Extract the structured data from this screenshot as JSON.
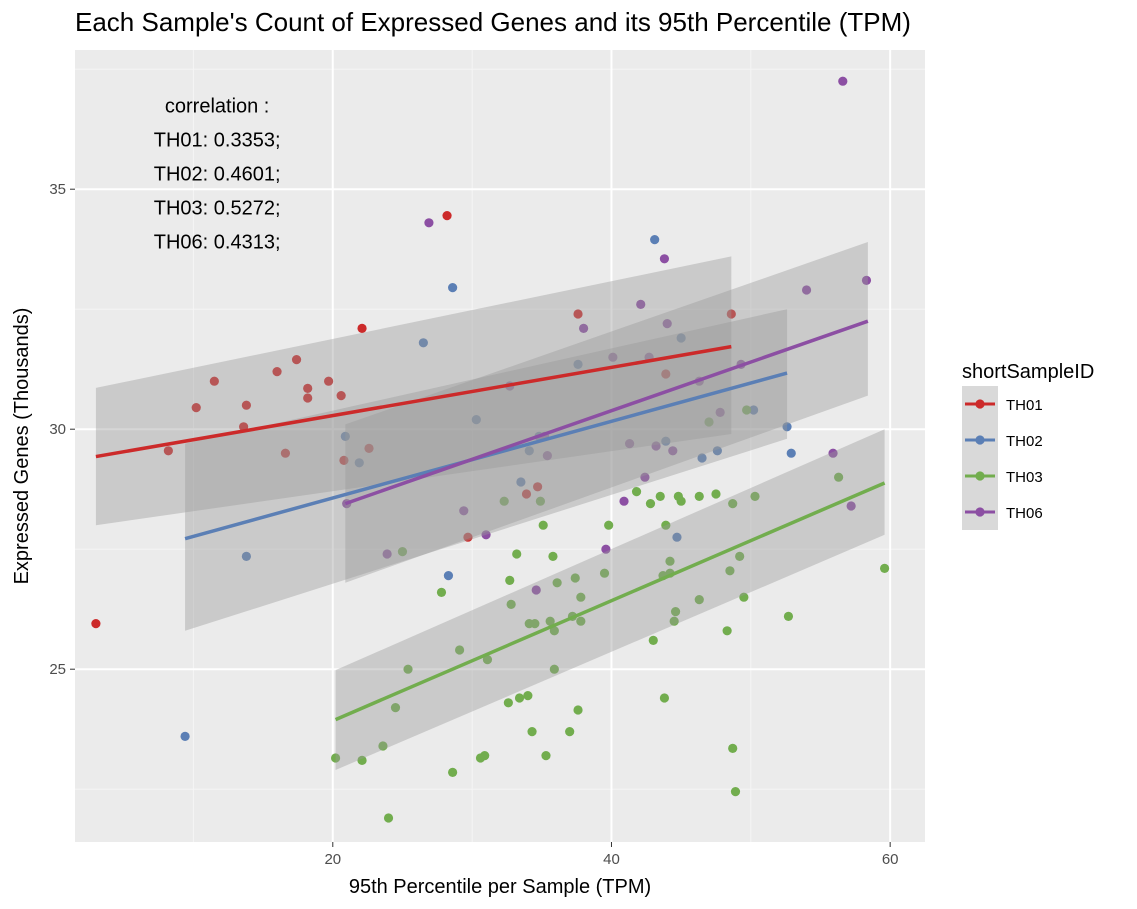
{
  "chart_data": {
    "type": "scatter",
    "title": "Each Sample's Count of Expressed Genes and its 95th Percentile (TPM)",
    "xlabel": "95th Percentile per Sample (TPM)",
    "ylabel": "Expressed Genes (Thousands)",
    "xlim": [
      1.5,
      62.5
    ],
    "ylim": [
      21.4,
      37.9
    ],
    "x_ticks": [
      20,
      40,
      60
    ],
    "y_ticks": [
      25,
      30,
      35
    ],
    "grid": true,
    "legend": {
      "title": "shortSampleID",
      "position": "right",
      "items": [
        "TH01",
        "TH02",
        "TH03",
        "TH06"
      ]
    },
    "annotation": [
      "correlation :",
      "TH01: 0.3353;",
      "TH02: 0.4601;",
      "TH03: 0.5272;",
      "TH06: 0.4313;"
    ],
    "series": [
      {
        "name": "TH01",
        "color": "#cc2a2a",
        "points": [
          [
            3.0,
            25.95
          ],
          [
            8.2,
            29.55
          ],
          [
            10.2,
            30.45
          ],
          [
            11.5,
            31.0
          ],
          [
            13.6,
            30.05
          ],
          [
            13.8,
            30.5
          ],
          [
            16.0,
            31.2
          ],
          [
            16.6,
            29.5
          ],
          [
            17.4,
            31.45
          ],
          [
            18.2,
            30.85
          ],
          [
            18.2,
            30.65
          ],
          [
            19.7,
            31.0
          ],
          [
            20.6,
            30.7
          ],
          [
            20.8,
            29.35
          ],
          [
            22.1,
            32.1
          ],
          [
            22.6,
            29.6
          ],
          [
            28.2,
            34.45
          ],
          [
            29.7,
            27.75
          ],
          [
            33.9,
            28.65
          ],
          [
            34.7,
            28.8
          ],
          [
            37.6,
            32.4
          ],
          [
            43.9,
            31.15
          ],
          [
            48.6,
            32.4
          ]
        ],
        "fit": {
          "x": [
            3.0,
            48.6
          ],
          "y": [
            29.43,
            31.72
          ],
          "ci_lo": [
            28.0,
            29.9
          ],
          "ci_hi": [
            30.86,
            33.6
          ]
        }
      },
      {
        "name": "TH02",
        "color": "#5b7fb5",
        "points": [
          [
            9.4,
            23.6
          ],
          [
            13.8,
            27.35
          ],
          [
            20.9,
            29.85
          ],
          [
            21.9,
            29.3
          ],
          [
            26.5,
            31.8
          ],
          [
            28.3,
            26.95
          ],
          [
            28.6,
            32.95
          ],
          [
            30.3,
            30.2
          ],
          [
            33.5,
            28.9
          ],
          [
            34.1,
            29.55
          ],
          [
            34.8,
            29.85
          ],
          [
            37.6,
            31.35
          ],
          [
            43.1,
            33.95
          ],
          [
            43.9,
            29.75
          ],
          [
            44.7,
            27.75
          ],
          [
            45.0,
            31.9
          ],
          [
            46.5,
            29.4
          ],
          [
            47.6,
            29.55
          ],
          [
            50.2,
            30.4
          ],
          [
            52.6,
            30.05
          ],
          [
            52.9,
            29.5
          ]
        ],
        "fit": {
          "x": [
            9.4,
            52.6
          ],
          "y": [
            27.72,
            31.17
          ],
          "ci_lo": [
            25.8,
            29.8
          ],
          "ci_hi": [
            29.7,
            32.5
          ]
        }
      },
      {
        "name": "TH03",
        "color": "#72ad4e",
        "points": [
          [
            20.2,
            23.15
          ],
          [
            22.1,
            23.1
          ],
          [
            23.6,
            23.4
          ],
          [
            24.0,
            21.9
          ],
          [
            24.5,
            24.2
          ],
          [
            25.0,
            27.45
          ],
          [
            25.4,
            25.0
          ],
          [
            27.8,
            26.6
          ],
          [
            28.6,
            22.85
          ],
          [
            29.1,
            25.4
          ],
          [
            30.6,
            23.15
          ],
          [
            30.9,
            23.2
          ],
          [
            31.1,
            25.2
          ],
          [
            32.3,
            28.5
          ],
          [
            32.6,
            24.3
          ],
          [
            32.7,
            26.85
          ],
          [
            32.8,
            26.35
          ],
          [
            33.2,
            27.4
          ],
          [
            33.4,
            24.4
          ],
          [
            34.0,
            24.45
          ],
          [
            34.1,
            25.95
          ],
          [
            34.3,
            23.7
          ],
          [
            34.5,
            25.95
          ],
          [
            34.9,
            28.5
          ],
          [
            35.1,
            28.0
          ],
          [
            35.3,
            23.2
          ],
          [
            35.6,
            26.0
          ],
          [
            35.8,
            27.35
          ],
          [
            35.9,
            25.0
          ],
          [
            35.9,
            25.8
          ],
          [
            36.1,
            26.8
          ],
          [
            37.0,
            23.7
          ],
          [
            37.2,
            26.1
          ],
          [
            37.4,
            26.9
          ],
          [
            37.6,
            24.15
          ],
          [
            37.8,
            26.5
          ],
          [
            37.8,
            26.0
          ],
          [
            39.5,
            27.0
          ],
          [
            39.8,
            28.0
          ],
          [
            41.8,
            28.7
          ],
          [
            42.8,
            28.45
          ],
          [
            43.0,
            25.6
          ],
          [
            43.5,
            28.6
          ],
          [
            43.9,
            28.0
          ],
          [
            43.7,
            26.95
          ],
          [
            43.8,
            24.4
          ],
          [
            44.2,
            27.25
          ],
          [
            44.2,
            27.0
          ],
          [
            44.5,
            26.0
          ],
          [
            44.6,
            26.2
          ],
          [
            44.8,
            28.6
          ],
          [
            45.0,
            28.5
          ],
          [
            46.3,
            26.45
          ],
          [
            46.3,
            28.6
          ],
          [
            47.0,
            30.15
          ],
          [
            47.5,
            28.65
          ],
          [
            48.3,
            25.8
          ],
          [
            48.5,
            27.05
          ],
          [
            48.7,
            28.45
          ],
          [
            48.7,
            23.35
          ],
          [
            48.9,
            22.45
          ],
          [
            49.2,
            27.35
          ],
          [
            49.5,
            26.5
          ],
          [
            50.3,
            28.6
          ],
          [
            52.7,
            26.1
          ],
          [
            56.3,
            29.0
          ],
          [
            59.6,
            27.1
          ],
          [
            49.7,
            30.4
          ]
        ],
        "fit": {
          "x": [
            20.2,
            59.6
          ],
          "y": [
            23.95,
            28.88
          ],
          "ci_lo": [
            22.9,
            27.8
          ],
          "ci_hi": [
            24.98,
            30.0
          ]
        }
      },
      {
        "name": "TH06",
        "color": "#8c4fa3",
        "points": [
          [
            21.0,
            28.45
          ],
          [
            23.9,
            27.4
          ],
          [
            26.9,
            34.3
          ],
          [
            29.4,
            28.3
          ],
          [
            31.0,
            27.8
          ],
          [
            32.7,
            30.9
          ],
          [
            34.6,
            26.65
          ],
          [
            35.2,
            29.85
          ],
          [
            35.4,
            29.45
          ],
          [
            38.0,
            32.1
          ],
          [
            39.6,
            27.5
          ],
          [
            40.1,
            31.5
          ],
          [
            40.9,
            28.5
          ],
          [
            41.3,
            29.7
          ],
          [
            42.1,
            32.6
          ],
          [
            42.4,
            29.0
          ],
          [
            42.7,
            31.5
          ],
          [
            43.2,
            29.65
          ],
          [
            43.8,
            33.55
          ],
          [
            44.0,
            32.2
          ],
          [
            44.4,
            29.55
          ],
          [
            46.3,
            31.0
          ],
          [
            47.8,
            30.35
          ],
          [
            49.3,
            31.35
          ],
          [
            54.0,
            32.9
          ],
          [
            55.9,
            29.5
          ],
          [
            56.6,
            37.25
          ],
          [
            57.2,
            28.4
          ],
          [
            58.3,
            33.1
          ]
        ],
        "fit": {
          "x": [
            20.9,
            58.4
          ],
          "y": [
            28.45,
            32.25
          ],
          "ci_lo": [
            26.8,
            30.7
          ],
          "ci_hi": [
            30.1,
            33.9
          ]
        }
      }
    ]
  }
}
